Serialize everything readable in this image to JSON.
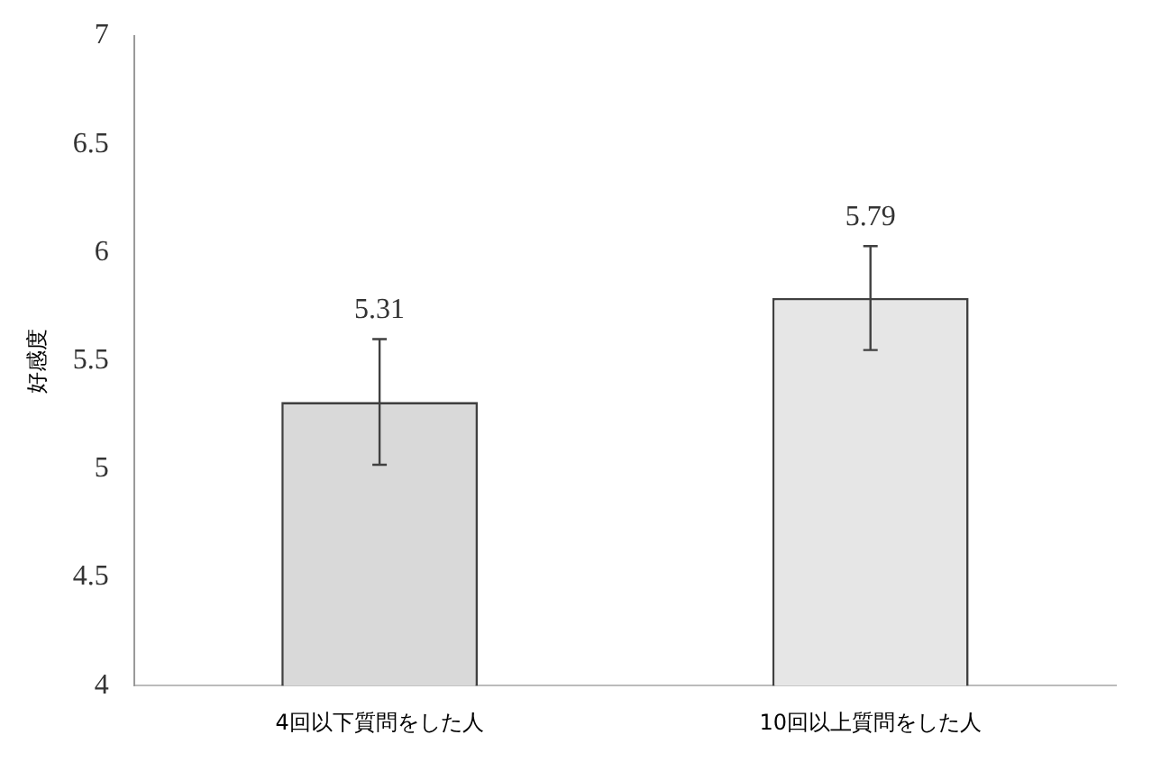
{
  "chart_data": {
    "type": "bar",
    "ylabel": "好感度",
    "categories": [
      "4回以下質問をした人",
      "10回以上質問をした人"
    ],
    "values": [
      5.31,
      5.79
    ],
    "errors": [
      0.29,
      0.24
    ],
    "colors": [
      "#d9d9d9",
      "#e6e6e6"
    ],
    "ylim": [
      4,
      7
    ],
    "yticks": [
      4,
      4.5,
      5,
      5.5,
      6,
      6.5,
      7
    ],
    "grid": false,
    "legend": false,
    "data_labels": true
  }
}
